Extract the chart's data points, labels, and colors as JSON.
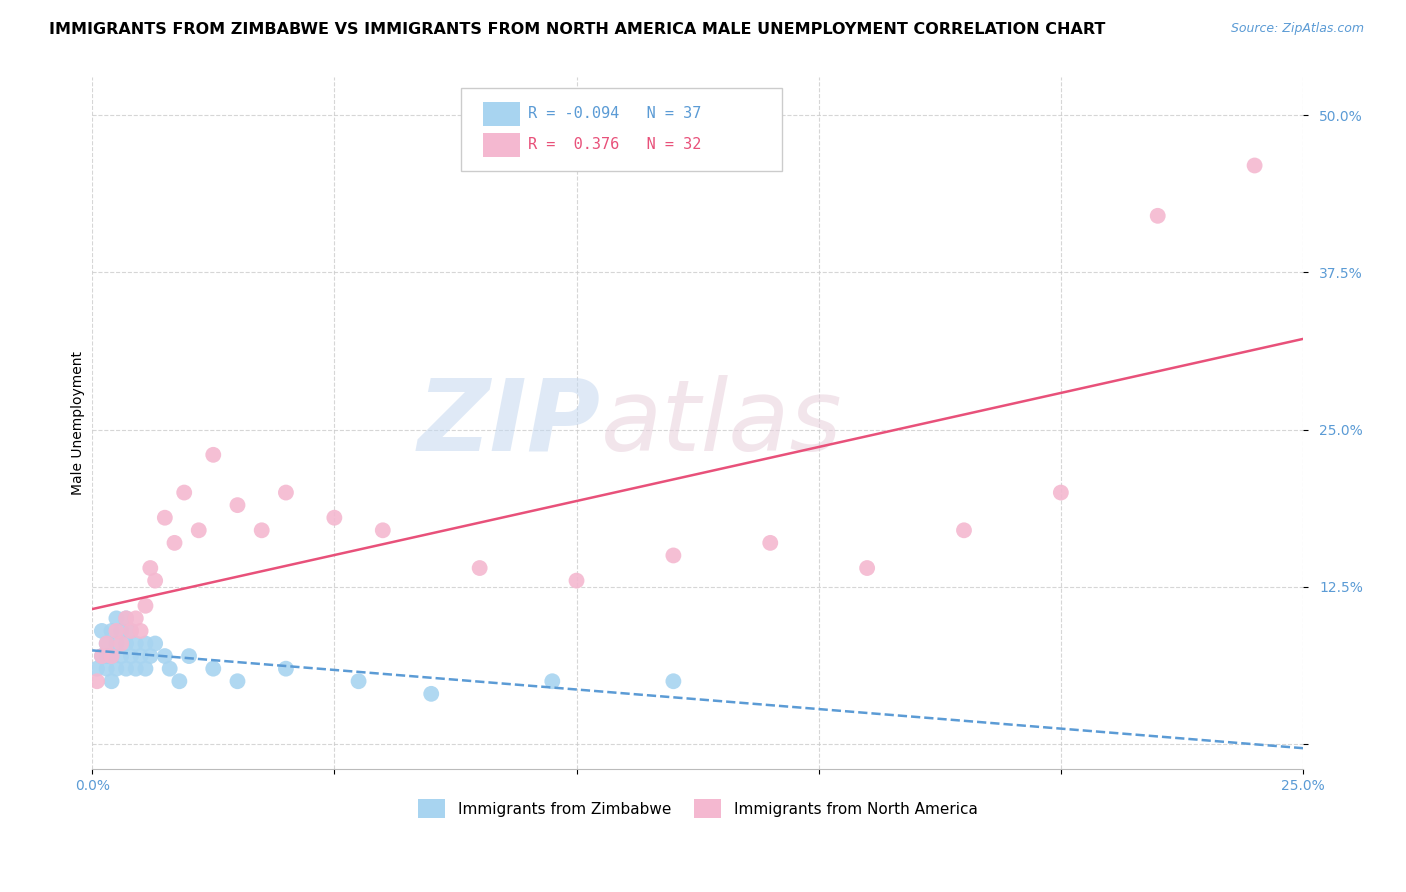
{
  "title": "IMMIGRANTS FROM ZIMBABWE VS IMMIGRANTS FROM NORTH AMERICA MALE UNEMPLOYMENT CORRELATION CHART",
  "source": "Source: ZipAtlas.com",
  "ylabel": "Male Unemployment",
  "xlim": [
    0,
    0.25
  ],
  "ylim": [
    -0.02,
    0.53
  ],
  "xticks": [
    0.0,
    0.05,
    0.1,
    0.15,
    0.2,
    0.25
  ],
  "yticks": [
    0.0,
    0.125,
    0.25,
    0.375,
    0.5
  ],
  "ytick_labels": [
    "",
    "12.5%",
    "25.0%",
    "37.5%",
    "50.0%"
  ],
  "xtick_labels": [
    "0.0%",
    "",
    "",
    "",
    "",
    "25.0%"
  ],
  "zim": {
    "name": "Immigrants from Zimbabwe",
    "R": -0.094,
    "N": 37,
    "color": "#a8d4f0",
    "line_color": "#5b9bd5",
    "x": [
      0.001,
      0.002,
      0.002,
      0.003,
      0.003,
      0.003,
      0.004,
      0.004,
      0.004,
      0.005,
      0.005,
      0.005,
      0.006,
      0.006,
      0.007,
      0.007,
      0.007,
      0.008,
      0.008,
      0.009,
      0.009,
      0.01,
      0.011,
      0.011,
      0.012,
      0.013,
      0.015,
      0.016,
      0.018,
      0.02,
      0.025,
      0.03,
      0.04,
      0.055,
      0.07,
      0.095,
      0.12
    ],
    "y": [
      0.06,
      0.07,
      0.09,
      0.06,
      0.07,
      0.08,
      0.05,
      0.07,
      0.09,
      0.06,
      0.08,
      0.1,
      0.07,
      0.09,
      0.06,
      0.08,
      0.1,
      0.07,
      0.09,
      0.06,
      0.08,
      0.07,
      0.08,
      0.06,
      0.07,
      0.08,
      0.07,
      0.06,
      0.05,
      0.07,
      0.06,
      0.05,
      0.06,
      0.05,
      0.04,
      0.05,
      0.05
    ]
  },
  "na": {
    "name": "Immigrants from North America",
    "R": 0.376,
    "N": 32,
    "color": "#f4b8d0",
    "line_color": "#e8517a",
    "x": [
      0.001,
      0.002,
      0.003,
      0.004,
      0.005,
      0.006,
      0.007,
      0.008,
      0.009,
      0.01,
      0.011,
      0.012,
      0.013,
      0.015,
      0.017,
      0.019,
      0.022,
      0.025,
      0.03,
      0.035,
      0.04,
      0.05,
      0.06,
      0.08,
      0.1,
      0.12,
      0.14,
      0.16,
      0.18,
      0.2,
      0.22,
      0.24
    ],
    "y": [
      0.05,
      0.07,
      0.08,
      0.07,
      0.09,
      0.08,
      0.1,
      0.09,
      0.1,
      0.09,
      0.11,
      0.14,
      0.13,
      0.18,
      0.16,
      0.2,
      0.17,
      0.23,
      0.19,
      0.17,
      0.2,
      0.18,
      0.17,
      0.14,
      0.13,
      0.15,
      0.16,
      0.14,
      0.17,
      0.2,
      0.42,
      0.46
    ]
  },
  "watermark_line1": "ZIP",
  "watermark_line2": "atlas",
  "background_color": "#ffffff",
  "grid_color": "#cccccc",
  "title_fontsize": 11.5,
  "axis_label_fontsize": 10,
  "tick_fontsize": 10,
  "legend_R_color_zim": "#5b9bd5",
  "legend_R_color_na": "#e8517a"
}
